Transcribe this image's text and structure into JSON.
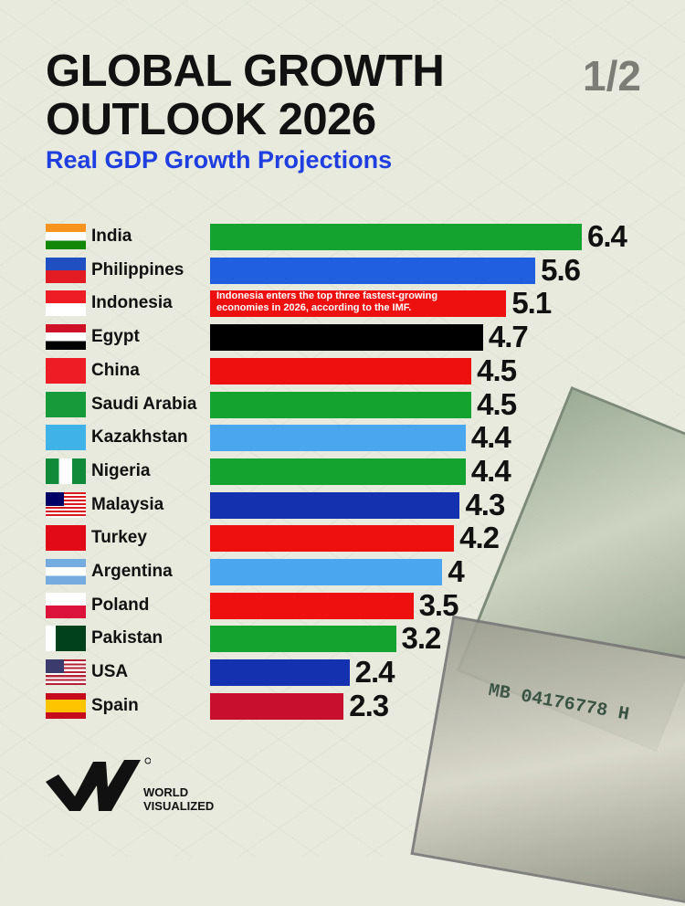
{
  "header": {
    "title_line1": "GLOBAL GROWTH",
    "title_line2": "OUTLOOK 2026",
    "subtitle": "Real GDP Growth Projections",
    "page_indicator": "1/2"
  },
  "chart_data": {
    "type": "bar",
    "orientation": "horizontal",
    "title": "GLOBAL GROWTH OUTLOOK 2026",
    "subtitle": "Real GDP Growth Projections",
    "categories": [
      "India",
      "Philippines",
      "Indonesia",
      "Egypt",
      "China",
      "Saudi Arabia",
      "Kazakhstan",
      "Nigeria",
      "Malaysia",
      "Turkey",
      "Argentina",
      "Poland",
      "Pakistan",
      "USA",
      "Spain"
    ],
    "values": [
      6.4,
      5.6,
      5.1,
      4.7,
      4.5,
      4.5,
      4.4,
      4.4,
      4.3,
      4.2,
      4,
      3.5,
      3.2,
      2.4,
      2.3
    ],
    "value_labels": [
      "6.4",
      "5.6",
      "5.1",
      "4.7",
      "4.5",
      "4.5",
      "4.4",
      "4.4",
      "4.3",
      "4.2",
      "4",
      "3.5",
      "3.2",
      "2.4",
      "2.3"
    ],
    "colors": [
      "#14a32e",
      "#1f5fe0",
      "#ee0f0f",
      "#000000",
      "#ee0f0f",
      "#14a32e",
      "#4aa6ee",
      "#14a32e",
      "#1432b0",
      "#ee0f0f",
      "#4aa6ee",
      "#ee0f0f",
      "#14a32e",
      "#1432b0",
      "#c8102e"
    ],
    "xlim": [
      0,
      6.4
    ],
    "grid": false,
    "annotation": {
      "category": "Indonesia",
      "text_line1": "Indonesia enters the top three fastest-growing",
      "text_line2": "economies in 2026, according to the IMF."
    }
  },
  "brand": {
    "line1": "WORLD",
    "line2": "VISUALIZED"
  }
}
